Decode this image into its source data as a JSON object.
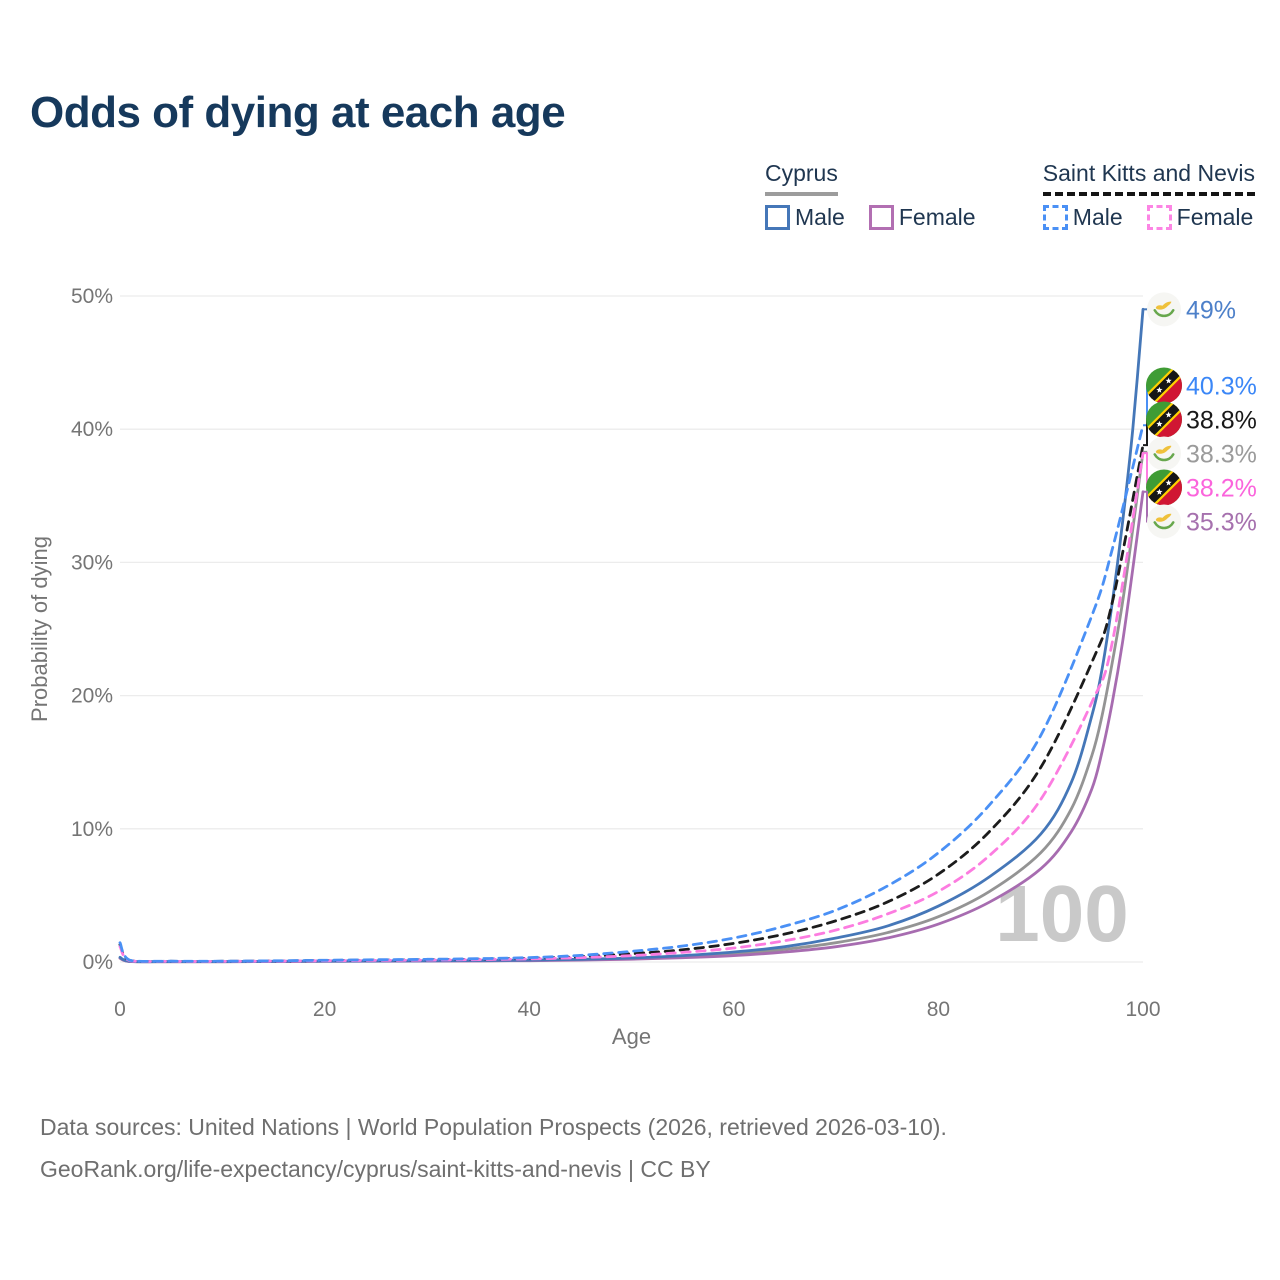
{
  "title": "Odds of dying at each age",
  "legend": {
    "groups": [
      {
        "country": "Cyprus",
        "line_style": "solid",
        "underline_color": "#9c9c9c",
        "items": [
          {
            "label": "Male",
            "color": "#4577b8"
          },
          {
            "label": "Female",
            "color": "#b26fb2"
          }
        ]
      },
      {
        "country": "Saint Kitts and Nevis",
        "line_style": "dashed",
        "underline_color": "#141414",
        "items": [
          {
            "label": "Male",
            "color": "#4a90f5"
          },
          {
            "label": "Female",
            "color": "#fc85e4"
          }
        ]
      }
    ]
  },
  "chart_data": {
    "type": "line",
    "title": "Odds of dying at each age",
    "xlabel": "Age",
    "ylabel": "Probability of dying",
    "x_ticks": [
      0,
      20,
      40,
      60,
      80,
      100
    ],
    "y_ticks": [
      "0%",
      "10%",
      "20%",
      "30%",
      "40%",
      "50%"
    ],
    "y_tick_values": [
      0,
      10,
      20,
      30,
      40,
      50
    ],
    "xlim": [
      0,
      100
    ],
    "ylim": [
      0,
      50
    ],
    "grid": "horizontal",
    "legend_position": "top-right",
    "watermark": "100",
    "series": [
      {
        "id": "cyprus-both-sexes",
        "country": "Cyprus",
        "sex": "Both sexes",
        "flag": "cyprus",
        "color": "#949494",
        "dash": false,
        "end_label": "38.3%",
        "label_color": "#9b9b9b",
        "end_value": 38.3,
        "points": [
          [
            0,
            0.3
          ],
          [
            1,
            0.04
          ],
          [
            5,
            0.025
          ],
          [
            10,
            0.025
          ],
          [
            15,
            0.04
          ],
          [
            20,
            0.06
          ],
          [
            25,
            0.07
          ],
          [
            30,
            0.08
          ],
          [
            35,
            0.09
          ],
          [
            40,
            0.12
          ],
          [
            45,
            0.17
          ],
          [
            50,
            0.26
          ],
          [
            55,
            0.4
          ],
          [
            60,
            0.6
          ],
          [
            65,
            0.95
          ],
          [
            70,
            1.45
          ],
          [
            75,
            2.2
          ],
          [
            80,
            3.4
          ],
          [
            85,
            5.3
          ],
          [
            90,
            8.2
          ],
          [
            93,
            11.5
          ],
          [
            95,
            15.5
          ],
          [
            96,
            18.5
          ],
          [
            97,
            22.5
          ],
          [
            98,
            27
          ],
          [
            99,
            32.5
          ],
          [
            100,
            38.3
          ]
        ]
      },
      {
        "id": "cyprus-female",
        "country": "Cyprus",
        "sex": "Female",
        "flag": "cyprus",
        "color": "#a76cb0",
        "dash": false,
        "end_label": "35.3%",
        "label_color": "#a671ae",
        "end_value": 35.3,
        "points": [
          [
            0,
            0.28
          ],
          [
            1,
            0.035
          ],
          [
            5,
            0.02
          ],
          [
            10,
            0.02
          ],
          [
            15,
            0.03
          ],
          [
            20,
            0.045
          ],
          [
            25,
            0.055
          ],
          [
            30,
            0.065
          ],
          [
            35,
            0.08
          ],
          [
            40,
            0.1
          ],
          [
            45,
            0.14
          ],
          [
            50,
            0.21
          ],
          [
            55,
            0.32
          ],
          [
            60,
            0.48
          ],
          [
            65,
            0.75
          ],
          [
            70,
            1.15
          ],
          [
            75,
            1.8
          ],
          [
            80,
            2.85
          ],
          [
            85,
            4.5
          ],
          [
            90,
            7.0
          ],
          [
            93,
            9.8
          ],
          [
            95,
            13
          ],
          [
            96,
            15.8
          ],
          [
            97,
            19.5
          ],
          [
            98,
            24
          ],
          [
            99,
            29.5
          ],
          [
            100,
            35.3
          ]
        ]
      },
      {
        "id": "cyprus-male",
        "country": "Cyprus",
        "sex": "Male",
        "flag": "cyprus",
        "color": "#4577b8",
        "dash": false,
        "end_label": "49%",
        "label_color": "#4d80c9",
        "end_value": 49,
        "points": [
          [
            0,
            0.35
          ],
          [
            1,
            0.05
          ],
          [
            5,
            0.03
          ],
          [
            10,
            0.03
          ],
          [
            15,
            0.05
          ],
          [
            20,
            0.07
          ],
          [
            25,
            0.08
          ],
          [
            30,
            0.09
          ],
          [
            35,
            0.11
          ],
          [
            40,
            0.14
          ],
          [
            45,
            0.2
          ],
          [
            50,
            0.3
          ],
          [
            55,
            0.48
          ],
          [
            60,
            0.75
          ],
          [
            65,
            1.15
          ],
          [
            70,
            1.8
          ],
          [
            75,
            2.7
          ],
          [
            80,
            4.2
          ],
          [
            85,
            6.4
          ],
          [
            90,
            9.6
          ],
          [
            93,
            13.5
          ],
          [
            95,
            18.5
          ],
          [
            96,
            22
          ],
          [
            97,
            27
          ],
          [
            98,
            33
          ],
          [
            99,
            40
          ],
          [
            100,
            49
          ]
        ]
      },
      {
        "id": "saint-kitts-and-nevis-both-sexes",
        "country": "Saint Kitts and Nevis",
        "sex": "Both sexes",
        "flag": "saint-kitts-and-nevis",
        "color": "#1c1c1c",
        "dash": true,
        "end_label": "38.8%",
        "label_color": "#191919",
        "end_value": 38.8,
        "points": [
          [
            0,
            1.3
          ],
          [
            1,
            0.1
          ],
          [
            5,
            0.05
          ],
          [
            10,
            0.05
          ],
          [
            15,
            0.075
          ],
          [
            20,
            0.11
          ],
          [
            25,
            0.14
          ],
          [
            30,
            0.17
          ],
          [
            35,
            0.21
          ],
          [
            40,
            0.28
          ],
          [
            45,
            0.4
          ],
          [
            50,
            0.62
          ],
          [
            55,
            0.92
          ],
          [
            60,
            1.4
          ],
          [
            65,
            2.1
          ],
          [
            70,
            3.1
          ],
          [
            75,
            4.5
          ],
          [
            80,
            6.6
          ],
          [
            85,
            9.8
          ],
          [
            90,
            14.6
          ],
          [
            95,
            22.5
          ],
          [
            97,
            27
          ],
          [
            100,
            38.8
          ]
        ]
      },
      {
        "id": "saint-kitts-and-nevis-female",
        "country": "Saint Kitts and Nevis",
        "sex": "Female",
        "flag": "saint-kitts-and-nevis",
        "color": "#fc7ce0",
        "dash": true,
        "end_label": "38.2%",
        "label_color": "#fb64dc",
        "end_value": 38.2,
        "points": [
          [
            0,
            1.15
          ],
          [
            1,
            0.09
          ],
          [
            5,
            0.045
          ],
          [
            10,
            0.045
          ],
          [
            15,
            0.065
          ],
          [
            20,
            0.095
          ],
          [
            25,
            0.12
          ],
          [
            30,
            0.14
          ],
          [
            35,
            0.18
          ],
          [
            40,
            0.23
          ],
          [
            45,
            0.33
          ],
          [
            50,
            0.48
          ],
          [
            55,
            0.72
          ],
          [
            60,
            1.05
          ],
          [
            65,
            1.6
          ],
          [
            70,
            2.4
          ],
          [
            75,
            3.6
          ],
          [
            80,
            5.3
          ],
          [
            85,
            8.0
          ],
          [
            90,
            12.2
          ],
          [
            95,
            19.5
          ],
          [
            97,
            24
          ],
          [
            100,
            38.2
          ]
        ]
      },
      {
        "id": "saint-kitts-and-nevis-male",
        "country": "Saint Kitts and Nevis",
        "sex": "Male",
        "flag": "saint-kitts-and-nevis",
        "color": "#4a90f5",
        "dash": true,
        "end_label": "40.3%",
        "label_color": "#3b87f7",
        "end_value": 40.3,
        "points": [
          [
            0,
            1.45
          ],
          [
            1,
            0.12
          ],
          [
            5,
            0.06
          ],
          [
            10,
            0.06
          ],
          [
            15,
            0.09
          ],
          [
            20,
            0.13
          ],
          [
            25,
            0.17
          ],
          [
            30,
            0.2
          ],
          [
            35,
            0.25
          ],
          [
            40,
            0.33
          ],
          [
            45,
            0.5
          ],
          [
            50,
            0.8
          ],
          [
            55,
            1.2
          ],
          [
            60,
            1.8
          ],
          [
            65,
            2.7
          ],
          [
            70,
            3.9
          ],
          [
            75,
            5.7
          ],
          [
            80,
            8.2
          ],
          [
            85,
            11.8
          ],
          [
            90,
            17
          ],
          [
            95,
            26
          ],
          [
            97,
            31
          ],
          [
            100,
            40.3
          ]
        ]
      }
    ]
  },
  "footer": {
    "line1": "Data sources: United Nations | World Population Prospects (2026, retrieved 2026-03-10).",
    "line2": "GeoRank.org/life-expectancy/cyprus/saint-kitts-and-nevis | CC BY"
  }
}
